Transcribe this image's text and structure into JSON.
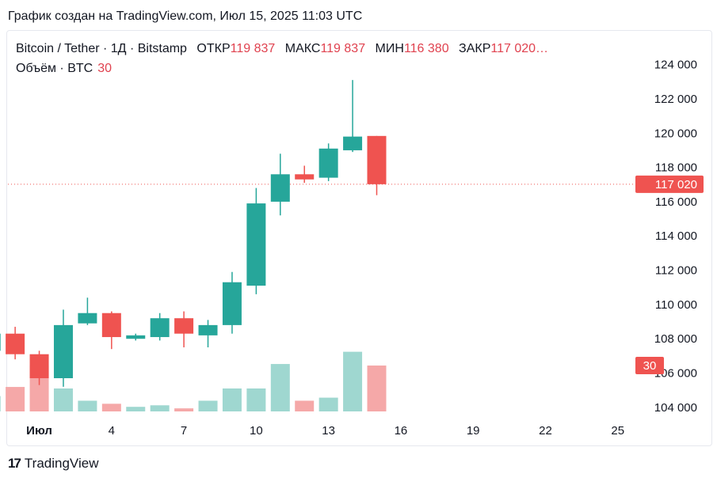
{
  "caption": "График создан на TradingView.com, Июл 15, 2025 11:03 UTC",
  "legend": {
    "symbol": "Bitcoin / Tether · 1Д · Bitstamp",
    "open_label": "ОТКР",
    "open_value": "119 837",
    "high_label": "МАКС",
    "high_value": "119 837",
    "low_label": "МИН",
    "low_value": "116 380",
    "close_label": "ЗАКР",
    "close_value": "117 020…",
    "volume_label": "Объём · BTC",
    "volume_value": "30"
  },
  "footer": {
    "brand": "TradingView"
  },
  "colors": {
    "up": "#26a69a",
    "down": "#ef5350",
    "up_vol": "#9fd7d0",
    "down_vol": "#f5a8a8",
    "price_line": "#ef5350"
  },
  "chart_data": {
    "type": "candlestick",
    "symbol": "Bitcoin / Tether",
    "interval": "1Д",
    "exchange": "Bitstamp",
    "y_tick_labels": [
      "124 000",
      "122 000",
      "120 000",
      "118 000",
      "116 000",
      "114 000",
      "112 000",
      "110 000",
      "108 000",
      "106 000",
      "104 000"
    ],
    "y_ticks": [
      124000,
      122000,
      120000,
      118000,
      116000,
      114000,
      112000,
      110000,
      108000,
      106000,
      104000
    ],
    "ylim": [
      103300,
      125000
    ],
    "x_tick_labels": [
      "Июл",
      "4",
      "7",
      "10",
      "13",
      "16",
      "19",
      "22",
      "25"
    ],
    "x_ticks": [
      1,
      4,
      7,
      10,
      13,
      16,
      19,
      22,
      25
    ],
    "xlim": [
      -0.3,
      25.6
    ],
    "last_price_label": "117 020",
    "last_price": 117020,
    "last_volume_label": "30",
    "last_volume": 30,
    "candles": [
      {
        "day": 29,
        "open": 107300,
        "high": 108500,
        "low": 107200,
        "close": 108300
      },
      {
        "day": 30,
        "open": 108300,
        "high": 108700,
        "low": 106800,
        "close": 107100
      },
      {
        "day": 1,
        "open": 107100,
        "high": 107300,
        "low": 105300,
        "close": 105700
      },
      {
        "day": 2,
        "open": 105700,
        "high": 109700,
        "low": 105200,
        "close": 108800
      },
      {
        "day": 3,
        "open": 108900,
        "high": 110400,
        "low": 108800,
        "close": 109500
      },
      {
        "day": 4,
        "open": 109500,
        "high": 109600,
        "low": 107400,
        "close": 108100
      },
      {
        "day": 5,
        "open": 108000,
        "high": 108300,
        "low": 107900,
        "close": 108200
      },
      {
        "day": 6,
        "open": 108100,
        "high": 109500,
        "low": 107900,
        "close": 109200
      },
      {
        "day": 7,
        "open": 109200,
        "high": 109600,
        "low": 107500,
        "close": 108300
      },
      {
        "day": 8,
        "open": 108200,
        "high": 109100,
        "low": 107500,
        "close": 108800
      },
      {
        "day": 9,
        "open": 108800,
        "high": 111900,
        "low": 108300,
        "close": 111300
      },
      {
        "day": 10,
        "open": 111100,
        "high": 116800,
        "low": 110600,
        "close": 115900
      },
      {
        "day": 11,
        "open": 116000,
        "high": 118800,
        "low": 115200,
        "close": 117600
      },
      {
        "day": 12,
        "open": 117600,
        "high": 118100,
        "low": 117100,
        "close": 117300
      },
      {
        "day": 13,
        "open": 117400,
        "high": 119400,
        "low": 117200,
        "close": 119100
      },
      {
        "day": 14,
        "open": 119000,
        "high": 123100,
        "low": 118900,
        "close": 119800
      },
      {
        "day": 15,
        "open": 119837,
        "high": 119837,
        "low": 116380,
        "close": 117020
      }
    ],
    "volume_max": 60,
    "volumes": [
      10,
      16,
      30,
      15,
      7,
      5,
      3,
      4,
      2,
      7,
      15,
      15,
      31,
      7,
      9,
      39,
      30
    ]
  }
}
